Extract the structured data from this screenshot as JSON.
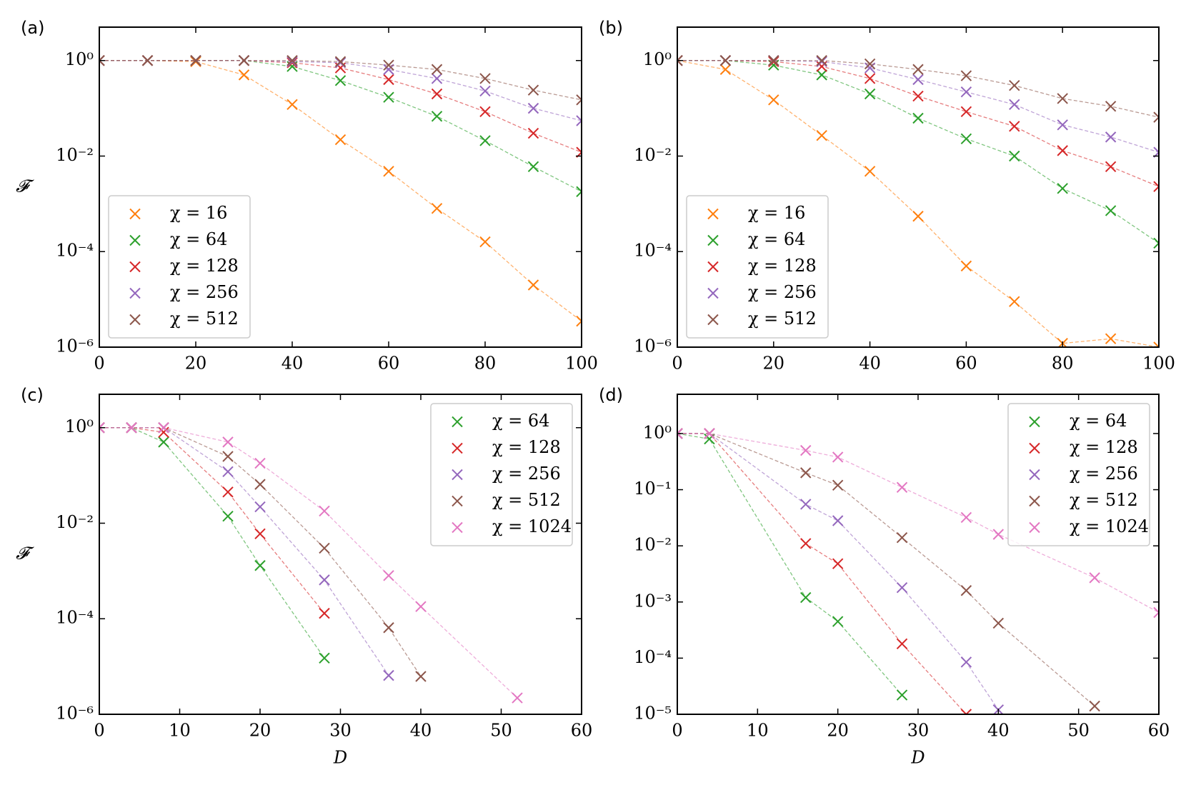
{
  "chart_data": [
    {
      "type": "line",
      "panel_label": "(a)",
      "ylabel": "𝓕",
      "log_scale": true,
      "grid": false,
      "legend": "lower left",
      "xlim": [
        0,
        100
      ],
      "xticks": [
        0,
        20,
        40,
        60,
        80,
        100
      ],
      "ylim": [
        1e-06,
        5
      ],
      "yticks": [
        {
          "value": 1e-06,
          "label": "10⁻⁶"
        },
        {
          "value": 0.0001,
          "label": "10⁻⁴"
        },
        {
          "value": 0.01,
          "label": "10⁻²"
        },
        {
          "value": 1,
          "label": "10⁰"
        }
      ],
      "x": [
        0,
        10,
        20,
        30,
        40,
        50,
        60,
        70,
        80,
        90,
        100
      ],
      "series": [
        {
          "name": "χ = 16",
          "color": "#ff7f0e",
          "values": [
            1,
            1,
            0.95,
            0.5,
            0.12,
            0.022,
            0.0048,
            0.0008,
            0.00016,
            2e-05,
            3.5e-06
          ]
        },
        {
          "name": "χ = 64",
          "color": "#2ca02c",
          "values": [
            1,
            1,
            1,
            1,
            0.75,
            0.38,
            0.17,
            0.068,
            0.021,
            0.006,
            0.0018
          ]
        },
        {
          "name": "χ = 128",
          "color": "#d62728",
          "values": [
            1,
            1,
            1,
            1,
            0.9,
            0.7,
            0.4,
            0.2,
            0.085,
            0.03,
            0.012
          ]
        },
        {
          "name": "χ = 256",
          "color": "#9467bd",
          "values": [
            1,
            1,
            1,
            1,
            0.95,
            0.9,
            0.65,
            0.42,
            0.23,
            0.1,
            0.055
          ]
        },
        {
          "name": "χ = 512",
          "color": "#8c564b",
          "values": [
            1,
            1,
            1,
            1,
            1,
            0.95,
            0.8,
            0.65,
            0.42,
            0.24,
            0.15
          ]
        }
      ]
    },
    {
      "type": "line",
      "panel_label": "(b)",
      "log_scale": true,
      "grid": false,
      "legend": "lower left",
      "xlim": [
        0,
        100
      ],
      "xticks": [
        0,
        20,
        40,
        60,
        80,
        100
      ],
      "ylim": [
        1e-06,
        5
      ],
      "yticks": [
        {
          "value": 1e-06,
          "label": "10⁻⁶"
        },
        {
          "value": 0.0001,
          "label": "10⁻⁴"
        },
        {
          "value": 0.01,
          "label": "10⁻²"
        },
        {
          "value": 1,
          "label": "10⁰"
        }
      ],
      "x": [
        0,
        10,
        20,
        30,
        40,
        50,
        60,
        70,
        80,
        90,
        100
      ],
      "series": [
        {
          "name": "χ = 16",
          "color": "#ff7f0e",
          "values": [
            1,
            0.65,
            0.15,
            0.027,
            0.0048,
            0.00055,
            5e-05,
            9e-06,
            1.2e-06,
            1.5e-06,
            1e-06
          ]
        },
        {
          "name": "χ = 64",
          "color": "#2ca02c",
          "values": [
            1,
            1,
            0.8,
            0.5,
            0.2,
            0.062,
            0.023,
            0.01,
            0.0021,
            0.00072,
            0.00015
          ]
        },
        {
          "name": "χ = 128",
          "color": "#d62728",
          "values": [
            1,
            1,
            0.95,
            0.75,
            0.42,
            0.18,
            0.085,
            0.042,
            0.013,
            0.006,
            0.0023
          ]
        },
        {
          "name": "χ = 256",
          "color": "#9467bd",
          "values": [
            1,
            1,
            1,
            0.95,
            0.7,
            0.4,
            0.22,
            0.12,
            0.045,
            0.025,
            0.012
          ]
        },
        {
          "name": "χ = 512",
          "color": "#8c564b",
          "values": [
            1,
            1,
            1,
            1,
            0.85,
            0.65,
            0.48,
            0.3,
            0.16,
            0.11,
            0.065
          ]
        }
      ]
    },
    {
      "type": "line",
      "panel_label": "(c)",
      "ylabel": "𝓕",
      "xlabel": "D",
      "log_scale": true,
      "grid": false,
      "legend": "upper right",
      "xlim": [
        0,
        60
      ],
      "xticks": [
        0,
        10,
        20,
        30,
        40,
        50,
        60
      ],
      "ylim": [
        1e-06,
        5
      ],
      "yticks": [
        {
          "value": 1e-06,
          "label": "10⁻⁶"
        },
        {
          "value": 0.0001,
          "label": "10⁻⁴"
        },
        {
          "value": 0.01,
          "label": "10⁻²"
        },
        {
          "value": 1,
          "label": "10⁰"
        }
      ],
      "x": [
        0,
        4,
        8,
        16,
        20,
        28,
        36,
        40,
        52
      ],
      "series": [
        {
          "name": "χ = 64",
          "color": "#2ca02c",
          "values": [
            1,
            1,
            0.5,
            0.014,
            0.0013,
            1.5e-05,
            null,
            null,
            null
          ]
        },
        {
          "name": "χ = 128",
          "color": "#d62728",
          "values": [
            1,
            1,
            0.8,
            0.045,
            0.006,
            0.00013,
            null,
            null,
            null
          ]
        },
        {
          "name": "χ = 256",
          "color": "#9467bd",
          "values": [
            1,
            1,
            1,
            0.12,
            0.022,
            0.00065,
            6.5e-06,
            null,
            null
          ]
        },
        {
          "name": "χ = 512",
          "color": "#8c564b",
          "values": [
            1,
            1,
            1,
            0.25,
            0.065,
            0.003,
            6.5e-05,
            6.2e-06,
            null
          ]
        },
        {
          "name": "χ = 1024",
          "color": "#e377c2",
          "values": [
            1,
            1,
            1,
            0.5,
            0.18,
            0.018,
            0.0008,
            0.00018,
            2.2e-06
          ]
        }
      ]
    },
    {
      "type": "line",
      "panel_label": "(d)",
      "xlabel": "D",
      "log_scale": true,
      "grid": false,
      "legend": "upper right",
      "xlim": [
        0,
        60
      ],
      "xticks": [
        0,
        10,
        20,
        30,
        40,
        50,
        60
      ],
      "ylim": [
        1e-05,
        5
      ],
      "yticks": [
        {
          "value": 1e-05,
          "label": "10⁻⁵"
        },
        {
          "value": 0.0001,
          "label": "10⁻⁴"
        },
        {
          "value": 0.001,
          "label": "10⁻³"
        },
        {
          "value": 0.01,
          "label": "10⁻²"
        },
        {
          "value": 0.1,
          "label": "10⁻¹"
        },
        {
          "value": 1,
          "label": "10⁰"
        }
      ],
      "x": [
        0,
        4,
        16,
        20,
        28,
        36,
        40,
        52,
        60
      ],
      "series": [
        {
          "name": "χ = 64",
          "color": "#2ca02c",
          "values": [
            1,
            0.8,
            0.0012,
            0.00045,
            2.2e-05,
            null,
            null,
            null,
            null
          ]
        },
        {
          "name": "χ = 128",
          "color": "#d62728",
          "values": [
            1,
            1,
            0.011,
            0.0048,
            0.00018,
            1e-05,
            null,
            null,
            null
          ]
        },
        {
          "name": "χ = 256",
          "color": "#9467bd",
          "values": [
            1,
            1,
            0.055,
            0.028,
            0.0018,
            8.5e-05,
            1.2e-05,
            null,
            null
          ]
        },
        {
          "name": "χ = 512",
          "color": "#8c564b",
          "values": [
            1,
            1,
            0.2,
            0.12,
            0.014,
            0.0016,
            0.00042,
            1.4e-05,
            null
          ]
        },
        {
          "name": "χ = 1024",
          "color": "#e377c2",
          "values": [
            1,
            1,
            0.5,
            0.38,
            0.11,
            0.032,
            0.016,
            0.0027,
            0.00065
          ]
        }
      ]
    }
  ]
}
